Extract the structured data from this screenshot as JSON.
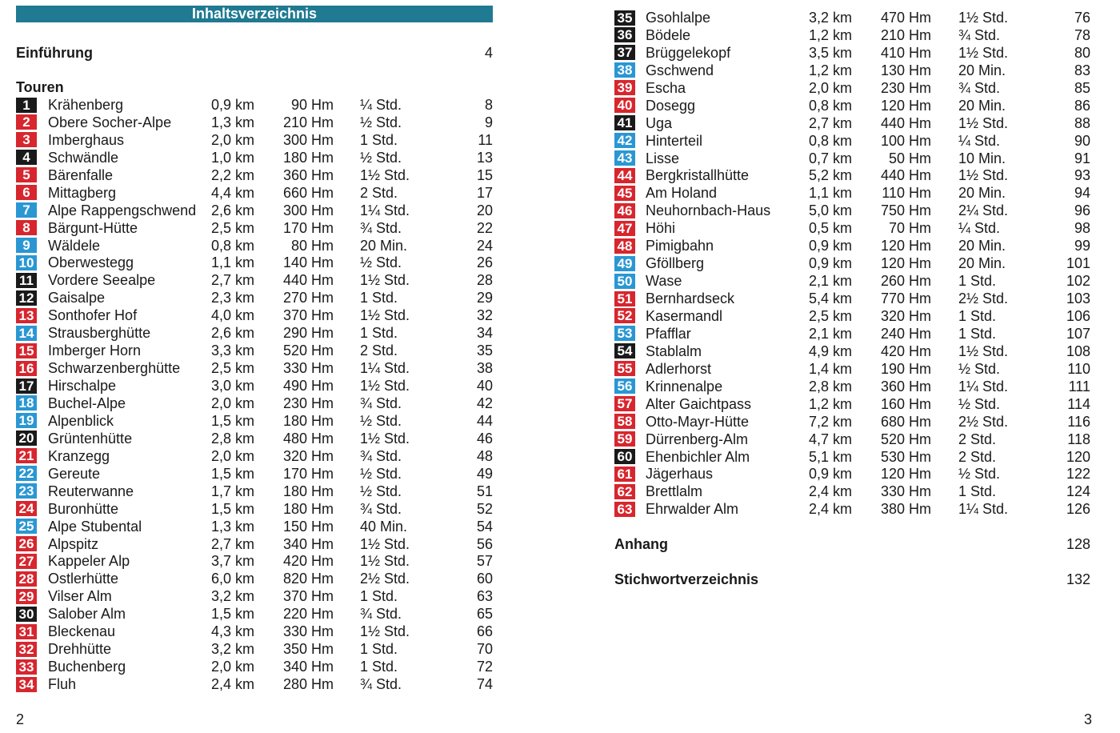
{
  "header": {
    "title": "Inhaltsverzeichnis"
  },
  "intro": {
    "label": "Einführung",
    "page": 4
  },
  "tours_heading": "Touren",
  "tours": [
    [
      1,
      "Krähenberg",
      "0,9 km",
      "90 Hm",
      "¼ Std.",
      8,
      "#1a1a1a"
    ],
    [
      2,
      "Obere Socher-Alpe",
      "1,3 km",
      "210 Hm",
      "½ Std.",
      9,
      "#d7262e"
    ],
    [
      3,
      "Imberghaus",
      "2,0 km",
      "300 Hm",
      "1 Std.",
      11,
      "#d7262e"
    ],
    [
      4,
      "Schwändle",
      "1,0 km",
      "180 Hm",
      "½ Std.",
      13,
      "#1a1a1a"
    ],
    [
      5,
      "Bärenfalle",
      "2,2 km",
      "360 Hm",
      "1½ Std.",
      15,
      "#d7262e"
    ],
    [
      6,
      "Mittagberg",
      "4,4 km",
      "660 Hm",
      "2 Std.",
      17,
      "#d7262e"
    ],
    [
      7,
      "Alpe Rappengschwend",
      "2,6 km",
      "300 Hm",
      "1¼ Std.",
      20,
      "#2a97d3"
    ],
    [
      8,
      "Bärgunt-Hütte",
      "2,5 km",
      "170 Hm",
      "¾ Std.",
      22,
      "#d7262e"
    ],
    [
      9,
      "Wäldele",
      "0,8 km",
      "80 Hm",
      "20 Min.",
      24,
      "#2a97d3"
    ],
    [
      10,
      "Oberwestegg",
      "1,1 km",
      "140 Hm",
      "½ Std.",
      26,
      "#2a97d3"
    ],
    [
      11,
      "Vordere Seealpe",
      "2,7 km",
      "440 Hm",
      "1½ Std.",
      28,
      "#1a1a1a"
    ],
    [
      12,
      "Gaisalpe",
      "2,3 km",
      "270 Hm",
      "1 Std.",
      29,
      "#1a1a1a"
    ],
    [
      13,
      "Sonthofer Hof",
      "4,0 km",
      "370 Hm",
      "1½ Std.",
      32,
      "#d7262e"
    ],
    [
      14,
      "Strausberghütte",
      "2,6 km",
      "290 Hm",
      "1 Std.",
      34,
      "#2a97d3"
    ],
    [
      15,
      "Imberger Horn",
      "3,3 km",
      "520 Hm",
      "2 Std.",
      35,
      "#d7262e"
    ],
    [
      16,
      "Schwarzenberghütte",
      "2,5 km",
      "330 Hm",
      "1¼ Std.",
      38,
      "#d7262e"
    ],
    [
      17,
      "Hirschalpe",
      "3,0 km",
      "490 Hm",
      "1½ Std.",
      40,
      "#1a1a1a"
    ],
    [
      18,
      "Buchel-Alpe",
      "2,0 km",
      "230 Hm",
      "¾ Std.",
      42,
      "#2a97d3"
    ],
    [
      19,
      "Alpenblick",
      "1,5 km",
      "180 Hm",
      "½ Std.",
      44,
      "#2a97d3"
    ],
    [
      20,
      "Grüntenhütte",
      "2,8 km",
      "480 Hm",
      "1½ Std.",
      46,
      "#1a1a1a"
    ],
    [
      21,
      "Kranzegg",
      "2,0 km",
      "320 Hm",
      "¾ Std.",
      48,
      "#d7262e"
    ],
    [
      22,
      "Gereute",
      "1,5 km",
      "170 Hm",
      "½ Std.",
      49,
      "#2a97d3"
    ],
    [
      23,
      "Reuterwanne",
      "1,7 km",
      "180 Hm",
      "½ Std.",
      51,
      "#2a97d3"
    ],
    [
      24,
      "Buronhütte",
      "1,5 km",
      "180 Hm",
      "¾ Std.",
      52,
      "#d7262e"
    ],
    [
      25,
      "Alpe Stubental",
      "1,3 km",
      "150 Hm",
      "40 Min.",
      54,
      "#2a97d3"
    ],
    [
      26,
      "Alpspitz",
      "2,7 km",
      "340 Hm",
      "1½ Std.",
      56,
      "#d7262e"
    ],
    [
      27,
      "Kappeler Alp",
      "3,7 km",
      "420 Hm",
      "1½ Std.",
      57,
      "#d7262e"
    ],
    [
      28,
      "Ostlerhütte",
      "6,0 km",
      "820 Hm",
      "2½ Std.",
      60,
      "#d7262e"
    ],
    [
      29,
      "Vilser Alm",
      "3,2 km",
      "370 Hm",
      "1 Std.",
      63,
      "#d7262e"
    ],
    [
      30,
      "Salober Alm",
      "1,5 km",
      "220 Hm",
      "¾ Std.",
      65,
      "#1a1a1a"
    ],
    [
      31,
      "Bleckenau",
      "4,3 km",
      "330 Hm",
      "1½ Std.",
      66,
      "#d7262e"
    ],
    [
      32,
      "Drehhütte",
      "3,2 km",
      "350 Hm",
      "1 Std.",
      70,
      "#d7262e"
    ],
    [
      33,
      "Buchenberg",
      "2,0 km",
      "340 Hm",
      "1 Std.",
      72,
      "#d7262e"
    ],
    [
      34,
      "Fluh",
      "2,4 km",
      "280 Hm",
      "¾ Std.",
      74,
      "#d7262e"
    ],
    [
      35,
      "Gsohlalpe",
      "3,2 km",
      "470 Hm",
      "1½ Std.",
      76,
      "#1a1a1a"
    ],
    [
      36,
      "Bödele",
      "1,2 km",
      "210 Hm",
      "¾ Std.",
      78,
      "#1a1a1a"
    ],
    [
      37,
      "Brüggelekopf",
      "3,5 km",
      "410 Hm",
      "1½ Std.",
      80,
      "#1a1a1a"
    ],
    [
      38,
      "Gschwend",
      "1,2 km",
      "130 Hm",
      "20 Min.",
      83,
      "#2a97d3"
    ],
    [
      39,
      "Escha",
      "2,0 km",
      "230 Hm",
      "¾ Std.",
      85,
      "#d7262e"
    ],
    [
      40,
      "Dosegg",
      "0,8 km",
      "120 Hm",
      "20 Min.",
      86,
      "#d7262e"
    ],
    [
      41,
      "Uga",
      "2,7 km",
      "440 Hm",
      "1½ Std.",
      88,
      "#1a1a1a"
    ],
    [
      42,
      "Hinterteil",
      "0,8 km",
      "100 Hm",
      "¼ Std.",
      90,
      "#2a97d3"
    ],
    [
      43,
      "Lisse",
      "0,7 km",
      "50 Hm",
      "10 Min.",
      91,
      "#2a97d3"
    ],
    [
      44,
      "Bergkristallhütte",
      "5,2 km",
      "440 Hm",
      "1½ Std.",
      93,
      "#d7262e"
    ],
    [
      45,
      "Am Holand",
      "1,1 km",
      "110 Hm",
      "20 Min.",
      94,
      "#d7262e"
    ],
    [
      46,
      "Neuhornbach-Haus",
      "5,0 km",
      "750 Hm",
      "2¼ Std.",
      96,
      "#d7262e"
    ],
    [
      47,
      "Höhi",
      "0,5 km",
      "70 Hm",
      "¼ Std.",
      98,
      "#d7262e"
    ],
    [
      48,
      "Pimigbahn",
      "0,9 km",
      "120 Hm",
      "20 Min.",
      99,
      "#d7262e"
    ],
    [
      49,
      "Gföllberg",
      "0,9 km",
      "120 Hm",
      "20 Min.",
      101,
      "#2a97d3"
    ],
    [
      50,
      "Wase",
      "2,1 km",
      "260 Hm",
      "1 Std.",
      102,
      "#2a97d3"
    ],
    [
      51,
      "Bernhardseck",
      "5,4 km",
      "770 Hm",
      "2½ Std.",
      103,
      "#d7262e"
    ],
    [
      52,
      "Kasermandl",
      "2,5 km",
      "320 Hm",
      "1 Std.",
      106,
      "#d7262e"
    ],
    [
      53,
      "Pfafflar",
      "2,1 km",
      "240 Hm",
      "1 Std.",
      107,
      "#2a97d3"
    ],
    [
      54,
      "Stablalm",
      "4,9 km",
      "420 Hm",
      "1½ Std.",
      108,
      "#1a1a1a"
    ],
    [
      55,
      "Adlerhorst",
      "1,4 km",
      "190 Hm",
      "½ Std.",
      110,
      "#d7262e"
    ],
    [
      56,
      "Krinnenalpe",
      "2,8 km",
      "360 Hm",
      "1¼ Std.",
      111,
      "#2a97d3"
    ],
    [
      57,
      "Alter Gaichtpass",
      "1,2 km",
      "160 Hm",
      "½ Std.",
      114,
      "#d7262e"
    ],
    [
      58,
      "Otto-Mayr-Hütte",
      "7,2 km",
      "680 Hm",
      "2½ Std.",
      116,
      "#d7262e"
    ],
    [
      59,
      "Dürrenberg-Alm",
      "4,7 km",
      "520 Hm",
      "2 Std.",
      118,
      "#d7262e"
    ],
    [
      60,
      "Ehenbichler Alm",
      "5,1 km",
      "530 Hm",
      "2 Std.",
      120,
      "#1a1a1a"
    ],
    [
      61,
      "Jägerhaus",
      "0,9 km",
      "120 Hm",
      "½ Std.",
      122,
      "#d7262e"
    ],
    [
      62,
      "Brettlalm",
      "2,4 km",
      "330 Hm",
      "1 Std.",
      124,
      "#d7262e"
    ],
    [
      63,
      "Ehrwalder Alm",
      "2,4 km",
      "380 Hm",
      "1¼ Std.",
      126,
      "#d7262e"
    ]
  ],
  "appendix": [
    {
      "label": "Anhang",
      "page": 128
    },
    {
      "label": "Stichwortverzeichnis",
      "page": 132
    }
  ],
  "footer": {
    "left_page": 2,
    "right_page": 3
  }
}
